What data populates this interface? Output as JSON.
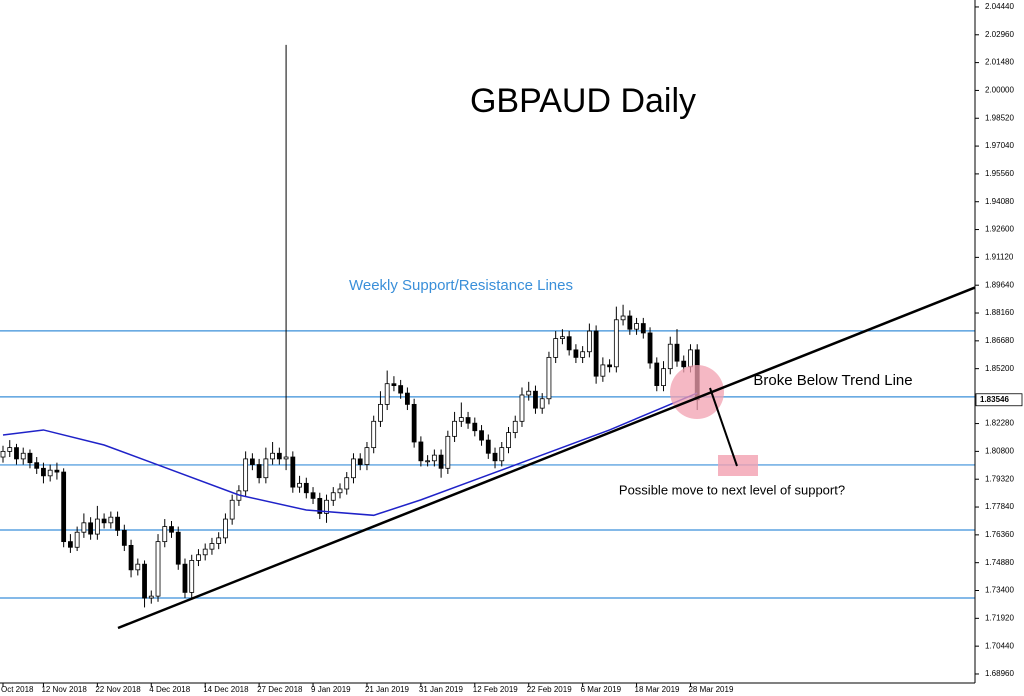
{
  "chart_data": {
    "type": "candlestick",
    "title": "GBPAUD Daily",
    "annotations": [
      "Weekly Support/Resistance Lines",
      "Broke Below Trend Line",
      "Possible move to next level of support?"
    ],
    "categories": [
      "Oct 2018",
      null,
      null,
      null,
      null,
      null,
      "12 Nov 2018",
      null,
      null,
      null,
      null,
      null,
      null,
      null,
      "22 Nov 2018",
      null,
      null,
      null,
      null,
      null,
      null,
      null,
      "4 Dec 2018",
      null,
      null,
      null,
      null,
      null,
      null,
      null,
      "14 Dec 2018",
      null,
      null,
      null,
      null,
      null,
      null,
      null,
      "27 Dec 2018",
      null,
      null,
      null,
      null,
      null,
      null,
      null,
      "9 Jan 2019",
      null,
      null,
      null,
      null,
      null,
      null,
      null,
      "21 Jan 2019",
      null,
      null,
      null,
      null,
      null,
      null,
      null,
      "31 Jan 2019",
      null,
      null,
      null,
      null,
      null,
      null,
      null,
      "12 Feb 2019",
      null,
      null,
      null,
      null,
      null,
      null,
      null,
      "22 Feb 2019",
      null,
      null,
      null,
      null,
      null,
      null,
      null,
      "6 Mar 2019",
      null,
      null,
      null,
      null,
      null,
      null,
      null,
      "18 Mar 2019",
      null,
      null,
      null,
      null,
      null,
      null,
      null,
      "28 Mar 2019",
      null
    ],
    "open": [
      1.805,
      1.808,
      1.81,
      1.804,
      1.807,
      1.802,
      1.799,
      1.795,
      1.798,
      1.797,
      1.76,
      1.757,
      1.765,
      1.77,
      1.764,
      1.772,
      1.77,
      1.773,
      1.766,
      1.758,
      1.745,
      1.748,
      1.73,
      1.731,
      1.76,
      1.768,
      1.765,
      1.748,
      1.733,
      1.75,
      1.753,
      1.756,
      1.759,
      1.762,
      1.772,
      1.782,
      1.787,
      1.804,
      1.801,
      1.794,
      1.804,
      1.807,
      1.804,
      1.805,
      1.789,
      1.791,
      1.786,
      1.783,
      1.775,
      1.782,
      1.786,
      1.788,
      1.794,
      1.804,
      1.801,
      1.81,
      1.824,
      1.833,
      1.844,
      1.843,
      1.839,
      1.833,
      1.813,
      1.803,
      1.803,
      1.806,
      1.799,
      1.816,
      1.824,
      1.826,
      1.823,
      1.819,
      1.814,
      1.807,
      1.803,
      1.81,
      1.818,
      1.824,
      1.838,
      1.84,
      1.831,
      1.836,
      1.858,
      1.868,
      1.869,
      1.862,
      1.858,
      1.861,
      1.872,
      1.848,
      1.854,
      1.853,
      1.878,
      1.88,
      1.873,
      1.876,
      1.871,
      1.855,
      1.843,
      1.852,
      1.865,
      1.856,
      1.853,
      1.862
    ],
    "high": [
      1.811,
      1.814,
      1.812,
      1.81,
      1.809,
      1.805,
      1.802,
      1.801,
      1.802,
      1.799,
      1.764,
      1.768,
      1.775,
      1.773,
      1.779,
      1.775,
      1.776,
      1.776,
      1.769,
      1.761,
      1.751,
      1.75,
      1.734,
      1.764,
      1.772,
      1.771,
      1.768,
      1.751,
      1.753,
      1.756,
      1.759,
      1.762,
      1.765,
      1.775,
      1.785,
      1.79,
      1.808,
      1.807,
      1.804,
      1.81,
      1.813,
      1.81,
      2.0242,
      1.808,
      1.795,
      1.794,
      1.789,
      1.786,
      1.785,
      1.789,
      1.791,
      1.797,
      1.807,
      1.807,
      1.813,
      1.827,
      1.84,
      1.851,
      1.848,
      1.846,
      1.842,
      1.836,
      1.816,
      1.806,
      1.809,
      1.809,
      1.819,
      1.829,
      1.834,
      1.829,
      1.826,
      1.822,
      1.817,
      1.81,
      1.813,
      1.821,
      1.827,
      1.842,
      1.845,
      1.843,
      1.839,
      1.861,
      1.872,
      1.873,
      1.872,
      1.865,
      1.864,
      1.876,
      1.875,
      1.858,
      1.857,
      1.885,
      1.886,
      1.883,
      1.879,
      1.879,
      1.874,
      1.858,
      1.856,
      1.869,
      1.873,
      1.859,
      1.865,
      1.865
    ],
    "low": [
      1.802,
      1.805,
      1.801,
      1.801,
      1.799,
      1.796,
      1.791,
      1.792,
      1.793,
      1.757,
      1.754,
      1.755,
      1.762,
      1.761,
      1.761,
      1.767,
      1.767,
      1.763,
      1.755,
      1.741,
      1.742,
      1.725,
      1.727,
      1.728,
      1.757,
      1.762,
      1.745,
      1.73,
      1.73,
      1.747,
      1.75,
      1.753,
      1.756,
      1.759,
      1.769,
      1.779,
      1.784,
      1.798,
      1.791,
      1.791,
      1.801,
      1.801,
      1.798,
      1.786,
      1.786,
      1.783,
      1.78,
      1.772,
      1.77,
      1.779,
      1.783,
      1.785,
      1.791,
      1.798,
      1.798,
      1.807,
      1.821,
      1.83,
      1.84,
      1.836,
      1.83,
      1.81,
      1.8,
      1.8,
      1.8,
      1.794,
      1.796,
      1.813,
      1.821,
      1.82,
      1.816,
      1.811,
      1.804,
      1.799,
      1.8,
      1.807,
      1.815,
      1.821,
      1.835,
      1.828,
      1.828,
      1.833,
      1.855,
      1.865,
      1.859,
      1.855,
      1.855,
      1.858,
      1.844,
      1.845,
      1.85,
      1.85,
      1.875,
      1.87,
      1.87,
      1.868,
      1.852,
      1.84,
      1.84,
      1.849,
      1.853,
      1.85,
      1.85,
      1.83
    ],
    "close": [
      1.808,
      1.81,
      1.804,
      1.807,
      1.802,
      1.799,
      1.795,
      1.798,
      1.797,
      1.76,
      1.757,
      1.765,
      1.77,
      1.764,
      1.772,
      1.77,
      1.773,
      1.766,
      1.758,
      1.745,
      1.748,
      1.73,
      1.731,
      1.76,
      1.768,
      1.765,
      1.748,
      1.733,
      1.75,
      1.753,
      1.756,
      1.759,
      1.762,
      1.772,
      1.782,
      1.787,
      1.804,
      1.801,
      1.794,
      1.804,
      1.807,
      1.804,
      1.805,
      1.789,
      1.791,
      1.786,
      1.783,
      1.775,
      1.782,
      1.786,
      1.788,
      1.794,
      1.804,
      1.801,
      1.81,
      1.824,
      1.833,
      1.844,
      1.843,
      1.839,
      1.833,
      1.813,
      1.803,
      1.803,
      1.806,
      1.799,
      1.816,
      1.824,
      1.826,
      1.823,
      1.819,
      1.814,
      1.807,
      1.803,
      1.81,
      1.818,
      1.824,
      1.838,
      1.84,
      1.831,
      1.836,
      1.858,
      1.868,
      1.869,
      1.862,
      1.858,
      1.861,
      1.872,
      1.848,
      1.854,
      1.853,
      1.878,
      1.88,
      1.873,
      1.876,
      1.871,
      1.855,
      1.843,
      1.852,
      1.865,
      1.856,
      1.853,
      1.862,
      1.83546
    ],
    "current_price": 1.83546,
    "moving_average": {
      "color": "#1f22c8",
      "x": [
        0,
        6,
        15,
        23,
        35,
        45,
        55,
        62,
        70,
        80,
        90,
        97,
        103
      ],
      "values": [
        1.8167,
        1.8194,
        1.8114,
        1.8008,
        1.7848,
        1.7768,
        1.774,
        1.7822,
        1.7928,
        1.8061,
        1.8194,
        1.83,
        1.839
      ]
    },
    "support_levels": [
      1.8721,
      1.837,
      1.8008,
      1.7662,
      1.73
    ],
    "level_color": "#3a8fd9",
    "ylim": [
      1.6848,
      2.0481
    ],
    "yticks": [
      {
        "value": 2.0444,
        "label": "2.04440"
      },
      {
        "value": 2.0296,
        "label": "2.02960"
      },
      {
        "value": 2.0148,
        "label": "2.01480"
      },
      {
        "value": 2.0,
        "label": "2.00000"
      },
      {
        "value": 1.9852,
        "label": "1.98520"
      },
      {
        "value": 1.9704,
        "label": "1.97040"
      },
      {
        "value": 1.9556,
        "label": "1.95560"
      },
      {
        "value": 1.9408,
        "label": "1.94080"
      },
      {
        "value": 1.926,
        "label": "1.92600"
      },
      {
        "value": 1.9112,
        "label": "1.91120"
      },
      {
        "value": 1.8964,
        "label": "1.89640"
      },
      {
        "value": 1.8816,
        "label": "1.88160"
      },
      {
        "value": 1.8668,
        "label": "1.86680"
      },
      {
        "value": 1.852,
        "label": "1.85200"
      },
      {
        "value": 1.8228,
        "label": "1.82280"
      },
      {
        "value": 1.808,
        "label": "1.80800"
      },
      {
        "value": 1.7932,
        "label": "1.79320"
      },
      {
        "value": 1.7784,
        "label": "1.77840"
      },
      {
        "value": 1.7636,
        "label": "1.76360"
      },
      {
        "value": 1.7488,
        "label": "1.74880"
      },
      {
        "value": 1.734,
        "label": "1.73400"
      },
      {
        "value": 1.7192,
        "label": "1.71920"
      },
      {
        "value": 1.7044,
        "label": "1.70440"
      },
      {
        "value": 1.6896,
        "label": "1.68960"
      }
    ]
  }
}
